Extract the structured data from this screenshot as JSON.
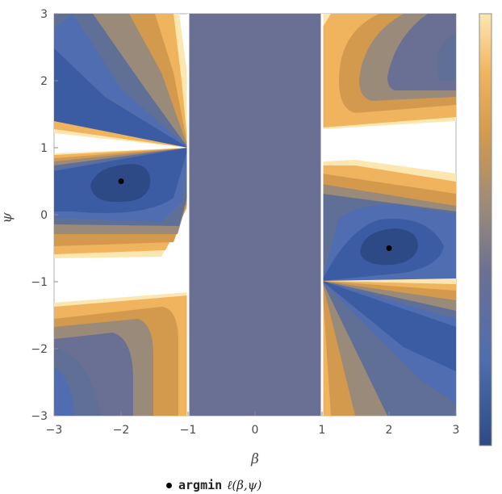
{
  "chart_data": {
    "type": "contour",
    "title": "",
    "xlabel": "β",
    "ylabel": "ψ",
    "xlim": [
      -3,
      3
    ],
    "ylim": [
      -3,
      3
    ],
    "x_ticks": [
      "−3",
      "−2",
      "−1",
      "0",
      "1",
      "2",
      "3"
    ],
    "y_ticks": [
      "3",
      "2",
      "1",
      "0",
      "−1",
      "−2",
      "−3"
    ],
    "colormap": [
      "#2e4a86",
      "#4f6db0",
      "#5f6f96",
      "#9a8a7a",
      "#d39a4e",
      "#f0b35e",
      "#fce7b0"
    ],
    "band_color": "#6a7093",
    "band_x_range": [
      -1,
      1
    ],
    "minima": [
      {
        "beta": -2,
        "psi": 0.5
      },
      {
        "beta": 2,
        "psi": -0.5
      }
    ],
    "legend": {
      "marker": "argmin",
      "expression": "ℓ(β,ψ)"
    }
  }
}
